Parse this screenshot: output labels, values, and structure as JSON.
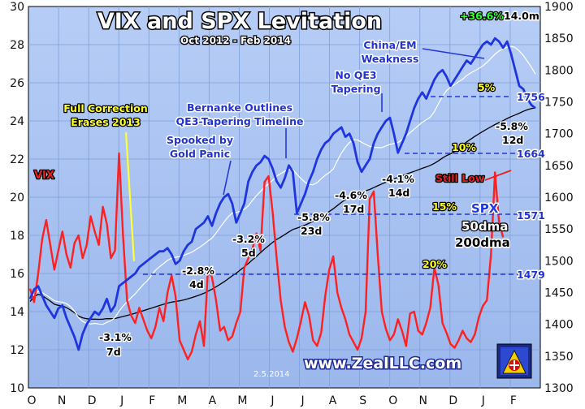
{
  "chart_data": {
    "type": "line",
    "title": "VIX and SPX Levitation",
    "subtitle": "Oct 2012 - Feb 2014",
    "x_labels": [
      "O",
      "N",
      "D",
      "J",
      "F",
      "M",
      "A",
      "M",
      "J",
      "J",
      "A",
      "S",
      "O",
      "N",
      "D",
      "J",
      "F"
    ],
    "left_axis": {
      "label": "",
      "ylim": [
        10,
        30
      ],
      "ticks": [
        10,
        12,
        14,
        16,
        18,
        20,
        22,
        24,
        26,
        28,
        30
      ]
    },
    "right_axis": {
      "label": "",
      "ylim": [
        1300,
        1900
      ],
      "ticks": [
        1300,
        1350,
        1400,
        1450,
        1500,
        1550,
        1600,
        1650,
        1700,
        1750,
        1800,
        1850,
        1900
      ]
    },
    "grid": true,
    "series": [
      {
        "name": "SPX",
        "axis": "right",
        "color": "#1f35e0",
        "values": [
          1440,
          1455,
          1460,
          1445,
          1430,
          1420,
          1410,
          1425,
          1430,
          1410,
          1395,
          1380,
          1360,
          1385,
          1400,
          1410,
          1420,
          1415,
          1425,
          1440,
          1420,
          1430,
          1460,
          1465,
          1470,
          1475,
          1480,
          1490,
          1495,
          1500,
          1505,
          1510,
          1515,
          1515,
          1520,
          1510,
          1495,
          1500,
          1515,
          1525,
          1530,
          1550,
          1555,
          1560,
          1570,
          1555,
          1575,
          1590,
          1600,
          1605,
          1590,
          1560,
          1575,
          1590,
          1625,
          1640,
          1650,
          1655,
          1665,
          1660,
          1645,
          1625,
          1615,
          1630,
          1650,
          1640,
          1575,
          1590,
          1605,
          1625,
          1640,
          1660,
          1675,
          1685,
          1690,
          1700,
          1705,
          1710,
          1695,
          1700,
          1685,
          1655,
          1640,
          1650,
          1660,
          1685,
          1700,
          1710,
          1720,
          1725,
          1700,
          1670,
          1685,
          1700,
          1720,
          1740,
          1755,
          1765,
          1755,
          1770,
          1785,
          1795,
          1800,
          1790,
          1775,
          1785,
          1795,
          1805,
          1815,
          1810,
          1820,
          1830,
          1840,
          1845,
          1840,
          1850,
          1845,
          1835,
          1845,
          1825,
          1800,
          1775,
          1770,
          1755,
          1745,
          1740
        ]
      },
      {
        "name": "VIX",
        "axis": "left",
        "color": "#ff2020",
        "values": [
          15.2,
          14.5,
          16.0,
          17.8,
          18.8,
          17.5,
          16.2,
          17.2,
          18.2,
          17.0,
          16.3,
          17.6,
          18.0,
          16.8,
          17.5,
          19.0,
          18.2,
          17.5,
          19.5,
          18.6,
          16.8,
          17.2,
          22.3,
          18.0,
          14.6,
          13.8,
          13.4,
          14.2,
          13.6,
          13.0,
          12.6,
          13.2,
          14.2,
          13.5,
          15.0,
          15.9,
          14.8,
          12.5,
          12.0,
          11.5,
          11.9,
          12.8,
          13.5,
          12.2,
          16.2,
          15.8,
          14.6,
          13.0,
          13.2,
          12.5,
          12.7,
          13.4,
          14.0,
          16.3,
          16.8,
          17.3,
          18.1,
          17.2,
          20.8,
          21.1,
          19.2,
          16.8,
          14.6,
          13.2,
          12.4,
          11.9,
          12.6,
          13.5,
          14.5,
          13.8,
          12.5,
          12.2,
          12.9,
          14.8,
          16.2,
          16.9,
          15.0,
          14.2,
          13.6,
          12.8,
          12.4,
          12.0,
          12.6,
          14.0,
          19.9,
          20.3,
          17.0,
          14.0,
          13.1,
          12.5,
          12.8,
          13.6,
          13.0,
          12.2,
          13.9,
          14.0,
          13.0,
          12.8,
          13.4,
          14.2,
          16.3,
          15.4,
          13.4,
          12.9,
          12.3,
          12.1,
          12.5,
          13.0,
          12.6,
          12.4,
          12.8,
          13.7,
          14.3,
          14.6,
          17.0,
          21.3,
          18.7,
          17.9
        ]
      }
    ],
    "annotations": [
      "Full Correction",
      "Erases 2013",
      "VIX",
      "Bernanke Outlines",
      "QE3-Tapering Timeline",
      "Spooked by",
      "Gold Panic",
      "No QE3",
      "Tapering",
      "China/EM",
      "Weakness",
      "+36.6%",
      "14.0m",
      "5%",
      "1756",
      "-5.8%",
      "12d",
      "10%",
      "1664",
      "-4.1%",
      "14d",
      "-4.6%",
      "17d",
      "Still Low",
      "-5.8%",
      "23d",
      "15%",
      "SPX",
      "1571",
      "50dma",
      "200dma",
      "-3.2%",
      "5d",
      "-2.8%",
      "4d",
      "20%",
      "1479",
      "-3.1%",
      "7d",
      "www.ZealLLC.com",
      "2.5.2014"
    ]
  },
  "colors": {
    "plot_bg": "#a7c2f2",
    "vix_line": "#ff2020",
    "spx_line": "#1f35e0",
    "ma50": "#ffffff",
    "ma200": "#000000",
    "grid": "#7f9fd8"
  }
}
